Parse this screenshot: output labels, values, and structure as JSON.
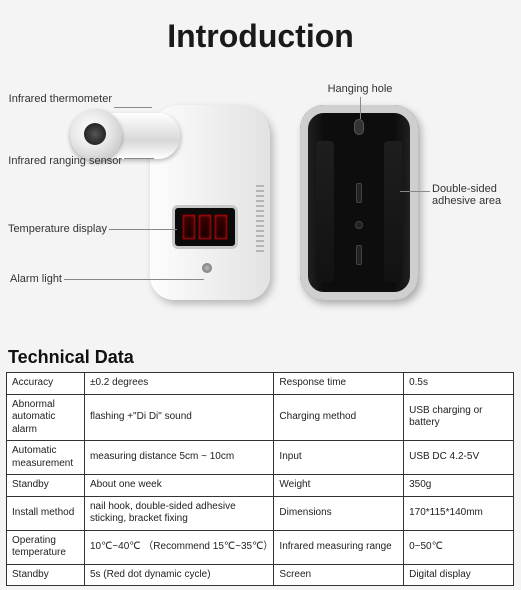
{
  "title": "Introduction",
  "annotations": {
    "infrared_thermometer": "Infrared thermometer",
    "infrared_ranging_sensor": "Infrared ranging sensor",
    "temperature_display": "Temperature display",
    "alarm_light": "Alarm light",
    "hanging_hole": "Hanging hole",
    "double_sided_adhesive": "Double-sided adhesive area"
  },
  "tech_heading": "Technical Data",
  "tech_rows": [
    {
      "label1": "Accuracy",
      "value1": "±0.2 degrees",
      "label2": "Response time",
      "value2": "0.5s"
    },
    {
      "label1": "Abnormal automatic alarm",
      "value1": "flashing +\"Di Di\" sound",
      "label2": "Charging method",
      "value2": "USB charging or battery"
    },
    {
      "label1": "Automatic measurement",
      "value1": "measuring distance 5cm ~ 10cm",
      "label2": "Input",
      "value2": "USB DC 4.2-5V"
    },
    {
      "label1": "Standby",
      "value1": "About one week",
      "label2": "Weight",
      "value2": "350g"
    },
    {
      "label1": "Install method",
      "value1": "nail hook, double-sided adhesive sticking, bracket fixing",
      "label2": "Dimensions",
      "value2": "170*115*140mm"
    },
    {
      "label1": "Operating temperature",
      "value1": "10℃~40℃ （Recommend 15℃~35℃）",
      "label2": "Infrared measuring range",
      "value2": "0~50℃"
    },
    {
      "label1": "Standby",
      "value1": "5s (Red dot dynamic cycle)",
      "label2": "Screen",
      "value2": "Digital display"
    }
  ],
  "colors": {
    "background": "#f4f4f4",
    "text": "#1a1a1a",
    "table_border": "#333333",
    "device_light": "#e2e2e2",
    "device_dark": "#0d0d0d",
    "led_red": "#550000"
  }
}
